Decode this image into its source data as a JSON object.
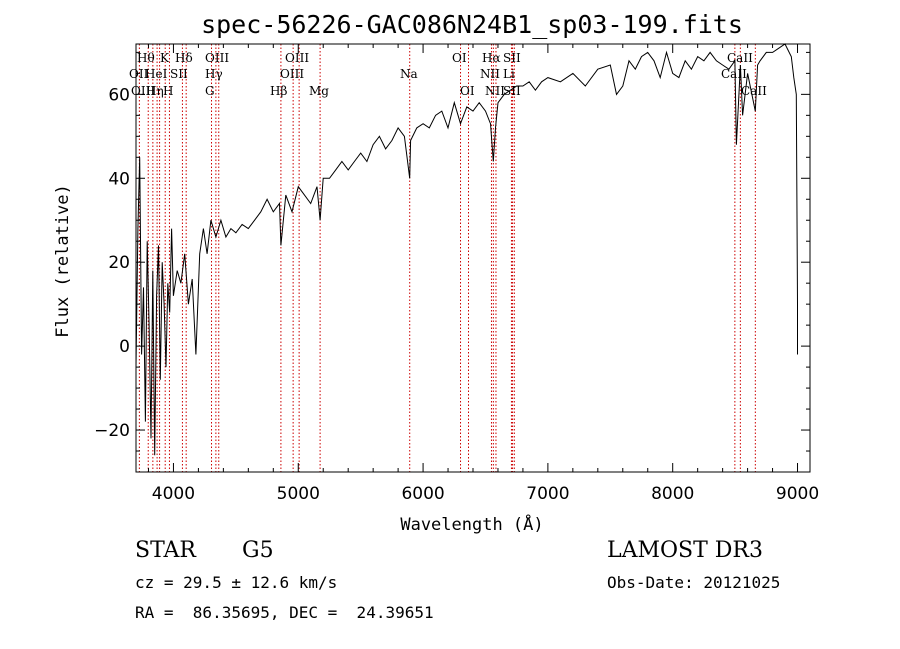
{
  "chart_data": {
    "type": "line",
    "title": "spec-56226-GAC086N24B1_sp03-199.fits",
    "xlabel": "Wavelength (Å)",
    "ylabel": "Flux (relative)",
    "xlim": [
      3700,
      9100
    ],
    "ylim": [
      -30,
      72
    ],
    "xticks": [
      4000,
      5000,
      6000,
      7000,
      8000,
      9000
    ],
    "yticks": [
      -20,
      0,
      20,
      40,
      60
    ],
    "series": [
      {
        "name": "flux",
        "x": [
          3700,
          3715,
          3730,
          3745,
          3760,
          3775,
          3790,
          3805,
          3820,
          3835,
          3850,
          3865,
          3880,
          3895,
          3910,
          3925,
          3940,
          3955,
          3970,
          3985,
          4000,
          4030,
          4060,
          4090,
          4120,
          4150,
          4180,
          4210,
          4240,
          4270,
          4300,
          4340,
          4380,
          4420,
          4460,
          4500,
          4550,
          4600,
          4650,
          4700,
          4750,
          4800,
          4850,
          4861,
          4900,
          4950,
          5000,
          5050,
          5100,
          5150,
          5175,
          5200,
          5250,
          5300,
          5350,
          5400,
          5450,
          5500,
          5550,
          5600,
          5650,
          5700,
          5750,
          5800,
          5850,
          5893,
          5900,
          5950,
          6000,
          6050,
          6100,
          6150,
          6200,
          6250,
          6300,
          6350,
          6400,
          6450,
          6500,
          6540,
          6563,
          6580,
          6600,
          6650,
          6700,
          6750,
          6800,
          6850,
          6900,
          6950,
          7000,
          7100,
          7200,
          7300,
          7400,
          7500,
          7550,
          7600,
          7650,
          7700,
          7750,
          7800,
          7850,
          7900,
          7950,
          8000,
          8050,
          8100,
          8150,
          8200,
          8250,
          8300,
          8350,
          8400,
          8450,
          8498,
          8510,
          8542,
          8560,
          8600,
          8662,
          8680,
          8700,
          8750,
          8800,
          8850,
          8900,
          8950,
          8970,
          8990,
          9000,
          9000
        ],
        "values": [
          -5,
          28,
          45,
          -2,
          14,
          -18,
          25,
          5,
          -22,
          18,
          -26,
          12,
          24,
          -8,
          20,
          10,
          -5,
          15,
          8,
          28,
          12,
          18,
          15,
          22,
          10,
          16,
          -2,
          22,
          28,
          22,
          30,
          26,
          30,
          26,
          28,
          27,
          29,
          28,
          30,
          32,
          35,
          32,
          34,
          24,
          36,
          32,
          38,
          36,
          34,
          38,
          30,
          40,
          40,
          42,
          44,
          42,
          44,
          46,
          44,
          48,
          50,
          47,
          49,
          52,
          50,
          40,
          49,
          52,
          53,
          52,
          55,
          56,
          52,
          58,
          53,
          57,
          56,
          58,
          56,
          53,
          44,
          52,
          58,
          60,
          61,
          62,
          62,
          63,
          61,
          63,
          64,
          63,
          65,
          62,
          66,
          67,
          60,
          62,
          68,
          66,
          69,
          70,
          68,
          64,
          70,
          65,
          64,
          68,
          66,
          69,
          68,
          70,
          68,
          67,
          66,
          68,
          48,
          67,
          55,
          65,
          56,
          67,
          68,
          70,
          70,
          71,
          72,
          69,
          64,
          60,
          10,
          -2
        ]
      }
    ],
    "lines": [
      {
        "name": "Hθ",
        "x": 3798
      },
      {
        "name": "OII",
        "x": 3727
      },
      {
        "name": "OIII",
        "x": 3869
      },
      {
        "name": "K",
        "x": 3934
      },
      {
        "name": "HeI",
        "x": 3889
      },
      {
        "name": "Hη",
        "x": 3835
      },
      {
        "name": "Hδ",
        "x": 4102
      },
      {
        "name": "SII",
        "x": 4072
      },
      {
        "name": "H",
        "x": 3968
      },
      {
        "name": "OIII",
        "x": 4363
      },
      {
        "name": "Hγ",
        "x": 4340
      },
      {
        "name": "G",
        "x": 4305
      },
      {
        "name": "OIII",
        "x": 5007
      },
      {
        "name": "OIII",
        "x": 4959
      },
      {
        "name": "Hβ",
        "x": 4861
      },
      {
        "name": "Mg",
        "x": 5175
      },
      {
        "name": "Na",
        "x": 5893
      },
      {
        "name": "OI",
        "x": 6300
      },
      {
        "name": "OI",
        "x": 6364
      },
      {
        "name": "Hα",
        "x": 6563
      },
      {
        "name": "NII",
        "x": 6548
      },
      {
        "name": "NII",
        "x": 6584
      },
      {
        "name": "SII",
        "x": 6717
      },
      {
        "name": "Li",
        "x": 6708
      },
      {
        "name": "SII",
        "x": 6731
      },
      {
        "name": "CaII",
        "x": 8542
      },
      {
        "name": "CaII",
        "x": 8498
      },
      {
        "name": "CaII",
        "x": 8662
      }
    ],
    "line_labels_text": {
      "row1": [
        "Hθ",
        "K",
        "Hδ",
        "OIII",
        "OIII",
        "OI",
        "Hα",
        "SII",
        "CaII"
      ],
      "row2": [
        "OII",
        "HeI",
        "SII",
        "Hγ",
        "OIII",
        "Na",
        "NII",
        "Li",
        "CaII"
      ],
      "row3": [
        "OIII",
        "Hη",
        "H",
        "G",
        "Hβ",
        "Mg",
        "OI",
        "NII",
        "SII",
        "CaII"
      ]
    }
  },
  "info": {
    "object_class": "STAR",
    "subclass": "G5",
    "survey": "LAMOST DR3",
    "cz": "cz = 29.5 ± 12.6 km/s",
    "obs_date": "Obs-Date: 20121025",
    "coords": "RA =  86.35695, DEC =  24.39651"
  },
  "colors": {
    "line_marker": "#cc0000",
    "spectrum": "#000000",
    "axes": "#000000"
  }
}
